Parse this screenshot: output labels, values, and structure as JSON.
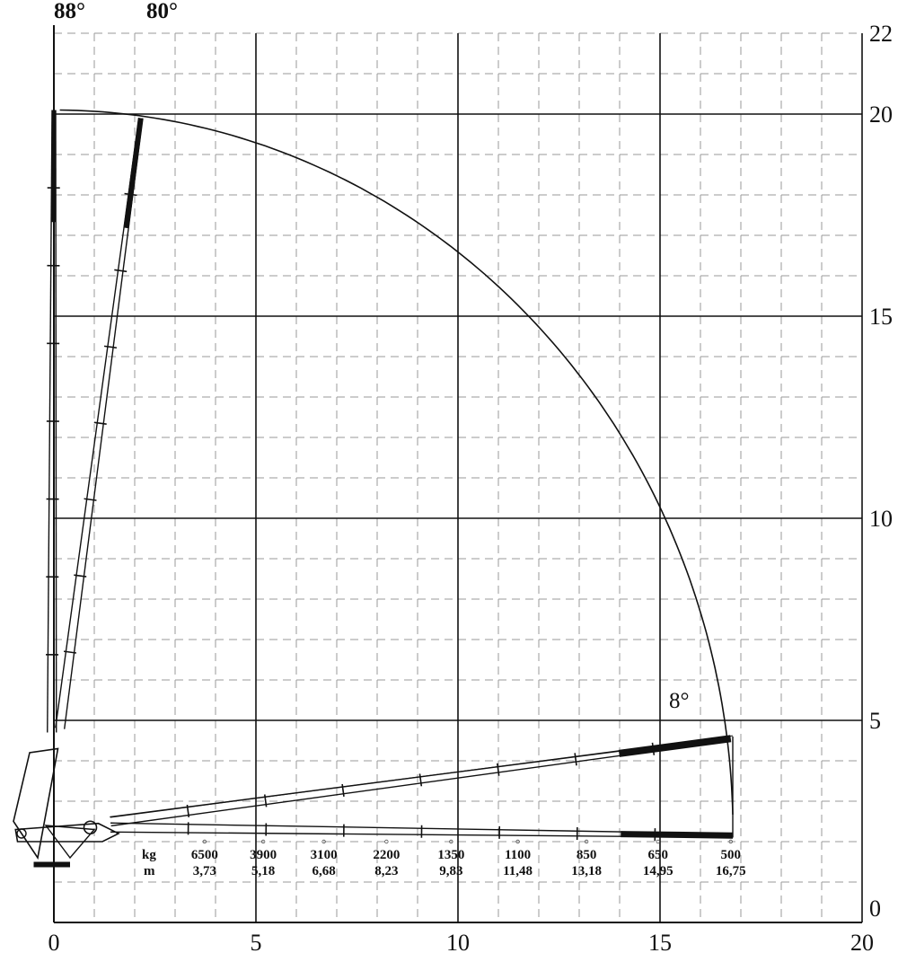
{
  "chart_data": {
    "type": "crane-load-diagram",
    "x_ticks": [
      "0",
      "5",
      "10",
      "15",
      "20"
    ],
    "y_ticks": [
      "0",
      "5",
      "10",
      "15",
      "20",
      "22"
    ],
    "xlim": [
      0,
      20
    ],
    "ylim": [
      0,
      22
    ],
    "grid": "major solid every 5 m, minor dashed every 1 m",
    "angles": [
      {
        "label": "88°",
        "deg": 88
      },
      {
        "label": "80°",
        "deg": 80
      },
      {
        "label": "8°",
        "deg": 8
      }
    ],
    "row_labels": {
      "load": "kg",
      "reach": "m"
    },
    "load_points": [
      {
        "kg": "6500",
        "m": "3,73",
        "reach": 3.73
      },
      {
        "kg": "3900",
        "m": "5,18",
        "reach": 5.18
      },
      {
        "kg": "3100",
        "m": "6,68",
        "reach": 6.68
      },
      {
        "kg": "2200",
        "m": "8,23",
        "reach": 8.23
      },
      {
        "kg": "1350",
        "m": "9,83",
        "reach": 9.83
      },
      {
        "kg": "1100",
        "m": "11,48",
        "reach": 11.48
      },
      {
        "kg": "850",
        "m": "13,18",
        "reach": 13.18
      },
      {
        "kg": "650",
        "m": "14,95",
        "reach": 14.95
      },
      {
        "kg": "500",
        "m": "16,75",
        "reach": 16.75
      }
    ],
    "envelope_center": [
      0,
      2
    ],
    "envelope_radius": 18.0
  }
}
